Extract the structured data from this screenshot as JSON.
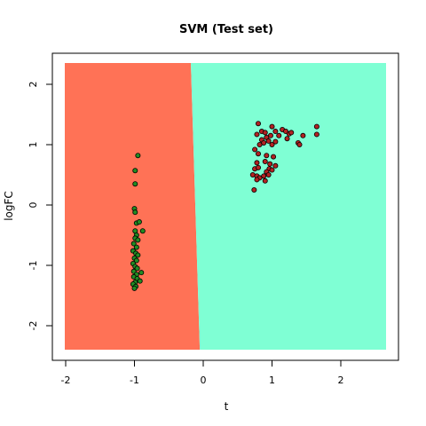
{
  "chart_data": {
    "type": "scatter",
    "title": "SVM (Test set)",
    "xlabel": "t",
    "ylabel": "logFC",
    "xlim": [
      -2.0,
      2.65
    ],
    "ylim": [
      -2.4,
      2.35
    ],
    "xticks": [
      -2,
      -1,
      0,
      1,
      2
    ],
    "yticks": [
      -2,
      -1,
      0,
      1,
      2
    ],
    "grid": false,
    "legend": "none",
    "regions": {
      "boundary": [
        [
          -0.18,
          2.35
        ],
        [
          -0.05,
          -2.4
        ]
      ],
      "left_color": "#FF7256",
      "right_color": "#7FFFD4"
    },
    "series": [
      {
        "color": "#228B22",
        "points": [
          [
            -0.95,
            0.82
          ],
          [
            -0.99,
            0.57
          ],
          [
            -0.99,
            0.35
          ],
          [
            -1.0,
            -0.06
          ],
          [
            -0.99,
            -0.12
          ],
          [
            -0.97,
            -0.3
          ],
          [
            -0.93,
            -0.28
          ],
          [
            -0.99,
            -0.43
          ],
          [
            -0.88,
            -0.43
          ],
          [
            -0.97,
            -0.5
          ],
          [
            -0.99,
            -0.55
          ],
          [
            -0.95,
            -0.58
          ],
          [
            -1.01,
            -0.64
          ],
          [
            -0.97,
            -0.7
          ],
          [
            -1.02,
            -0.76
          ],
          [
            -0.98,
            -0.8
          ],
          [
            -0.95,
            -0.83
          ],
          [
            -1.0,
            -0.88
          ],
          [
            -0.97,
            -0.92
          ],
          [
            -1.02,
            -0.97
          ],
          [
            -0.99,
            -1.02
          ],
          [
            -0.96,
            -1.05
          ],
          [
            -1.01,
            -1.1
          ],
          [
            -0.9,
            -1.12
          ],
          [
            -0.97,
            -1.15
          ],
          [
            -1.01,
            -1.19
          ],
          [
            -0.96,
            -1.22
          ],
          [
            -0.92,
            -1.26
          ],
          [
            -0.99,
            -1.28
          ],
          [
            -1.02,
            -1.31
          ],
          [
            -0.98,
            -1.35
          ],
          [
            -1.0,
            -1.38
          ]
        ]
      },
      {
        "color": "#B22222",
        "points": [
          [
            0.8,
            1.35
          ],
          [
            0.85,
            1.22
          ],
          [
            0.9,
            1.2
          ],
          [
            1.0,
            1.3
          ],
          [
            1.05,
            1.22
          ],
          [
            1.15,
            1.25
          ],
          [
            1.2,
            1.22
          ],
          [
            1.25,
            1.18
          ],
          [
            1.28,
            1.2
          ],
          [
            1.45,
            1.15
          ],
          [
            1.65,
            1.3
          ],
          [
            1.65,
            1.17
          ],
          [
            0.78,
            1.17
          ],
          [
            0.92,
            1.12
          ],
          [
            0.98,
            1.15
          ],
          [
            1.1,
            1.15
          ],
          [
            1.22,
            1.1
          ],
          [
            0.85,
            1.08
          ],
          [
            0.88,
            1.03
          ],
          [
            0.95,
            1.06
          ],
          [
            1.0,
            1.0
          ],
          [
            1.05,
            1.05
          ],
          [
            1.38,
            1.03
          ],
          [
            1.4,
            1.0
          ],
          [
            0.82,
            1.0
          ],
          [
            0.75,
            0.92
          ],
          [
            0.8,
            0.85
          ],
          [
            0.92,
            0.82
          ],
          [
            1.02,
            0.8
          ],
          [
            0.78,
            0.7
          ],
          [
            0.9,
            0.72
          ],
          [
            0.97,
            0.68
          ],
          [
            1.05,
            0.65
          ],
          [
            0.96,
            0.6
          ],
          [
            1.0,
            0.58
          ],
          [
            0.75,
            0.6
          ],
          [
            0.8,
            0.62
          ],
          [
            0.92,
            0.55
          ],
          [
            0.72,
            0.5
          ],
          [
            0.78,
            0.48
          ],
          [
            0.88,
            0.48
          ],
          [
            0.95,
            0.5
          ],
          [
            0.82,
            0.45
          ],
          [
            0.78,
            0.42
          ],
          [
            0.9,
            0.4
          ],
          [
            0.74,
            0.25
          ]
        ]
      }
    ]
  }
}
